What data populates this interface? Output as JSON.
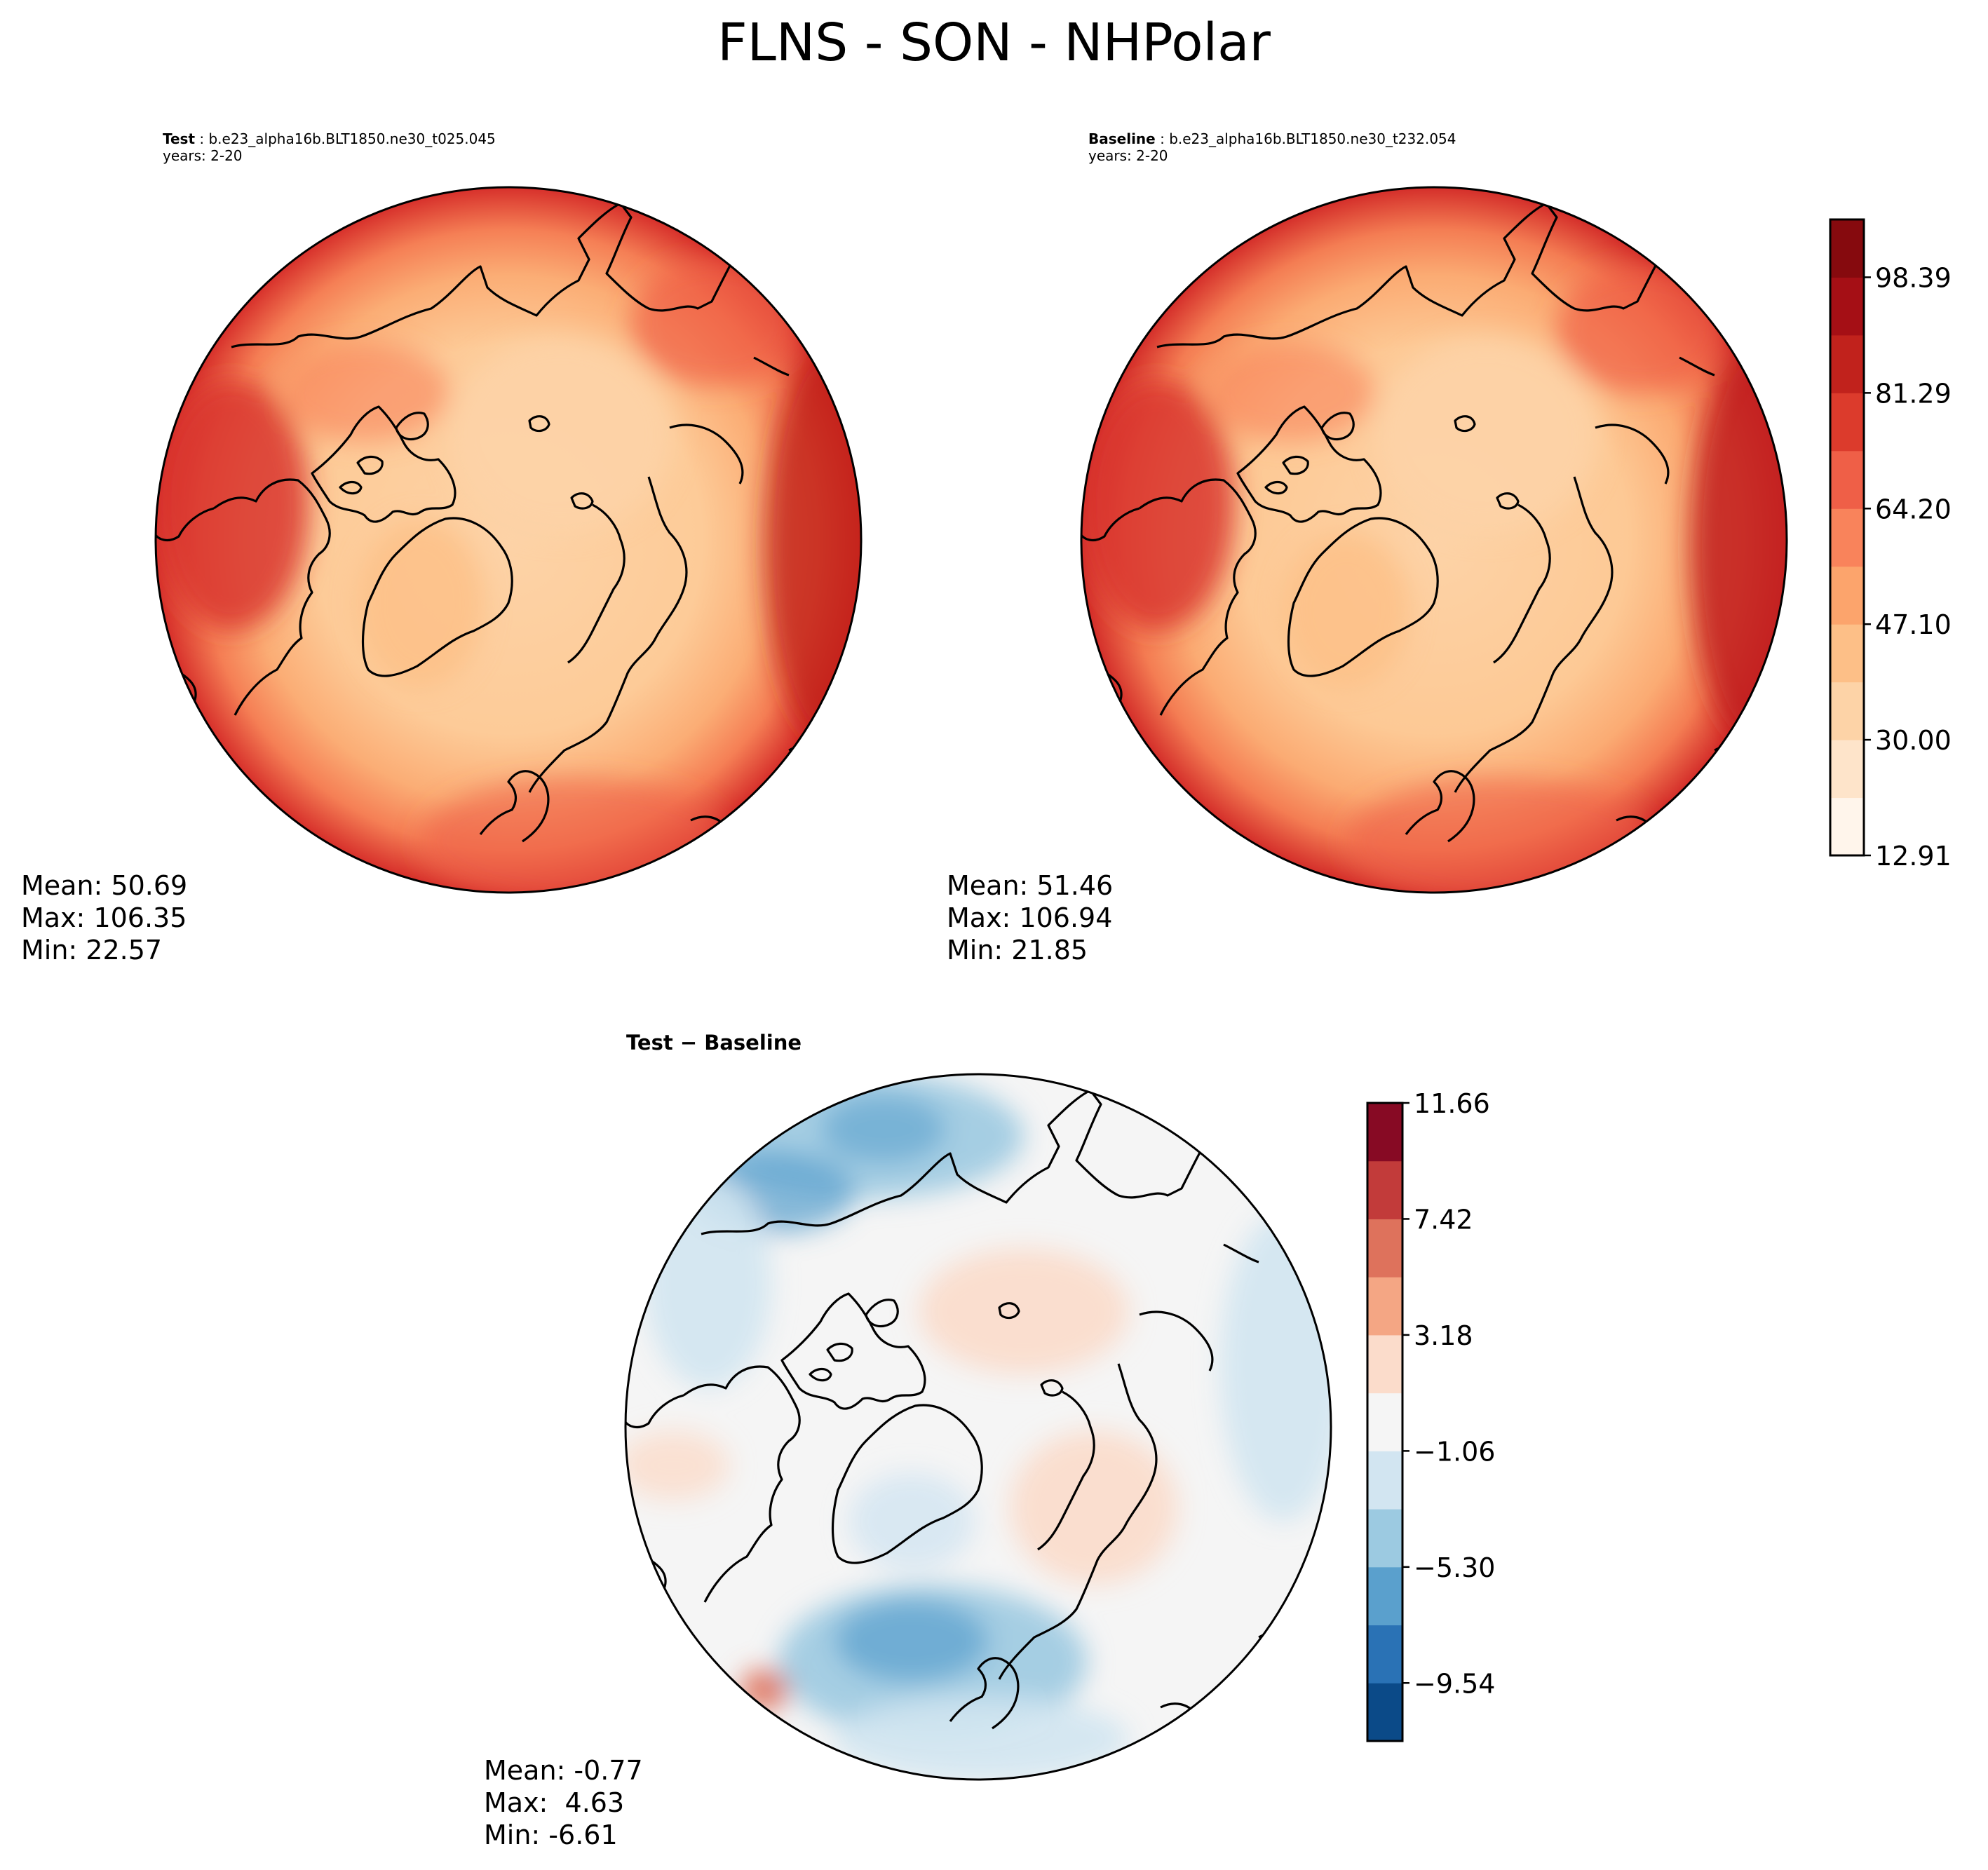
{
  "title": "FLNS - SON - NHPolar",
  "panels": {
    "test": {
      "label": "Test",
      "case": "b.e23_alpha16b.BLT1850.ne30_t025.045",
      "years": "years: 2-20",
      "stats": {
        "mean": "Mean: 50.69",
        "max": "Max: 106.35",
        "min": "Min: 22.57"
      }
    },
    "baseline": {
      "label": "Baseline",
      "case": "b.e23_alpha16b.BLT1850.ne30_t232.054",
      "years": "years: 2-20",
      "stats": {
        "mean": "Mean: 51.46",
        "max": "Max: 106.94",
        "min": "Min: 21.85"
      }
    },
    "diff": {
      "label": "Test − Baseline",
      "stats": {
        "mean": "Mean: -0.77",
        "max": "Max:  4.63",
        "min": "Min: -6.61"
      }
    }
  },
  "colorbars": {
    "field": {
      "tick_labels": [
        "12.91",
        "30.00",
        "47.10",
        "64.20",
        "81.29",
        "98.39"
      ],
      "colors": [
        "#fff5eb",
        "#fee4ca",
        "#fdd3a7",
        "#fdbf87",
        "#fca46c",
        "#f9835b",
        "#ef5f47",
        "#dc3b2c",
        "#c1221c",
        "#a50f15",
        "#860a0e"
      ]
    },
    "diff": {
      "tick_labels": [
        "−9.54",
        "−5.30",
        "−1.06",
        "3.18",
        "7.42",
        "11.66"
      ],
      "colors": [
        "#0b4a88",
        "#2a72b5",
        "#5aa0cd",
        "#9ccae1",
        "#d2e5f1",
        "#f5f5f5",
        "#fbdccb",
        "#f4a684",
        "#de725c",
        "#c23b3a",
        "#870a24"
      ]
    }
  },
  "map_colors": {
    "ocean_test": "#fdd3a7",
    "ocean_base": "#fdcf9f",
    "diff_bg": "#f5f5f5",
    "coast": "#000000"
  }
}
